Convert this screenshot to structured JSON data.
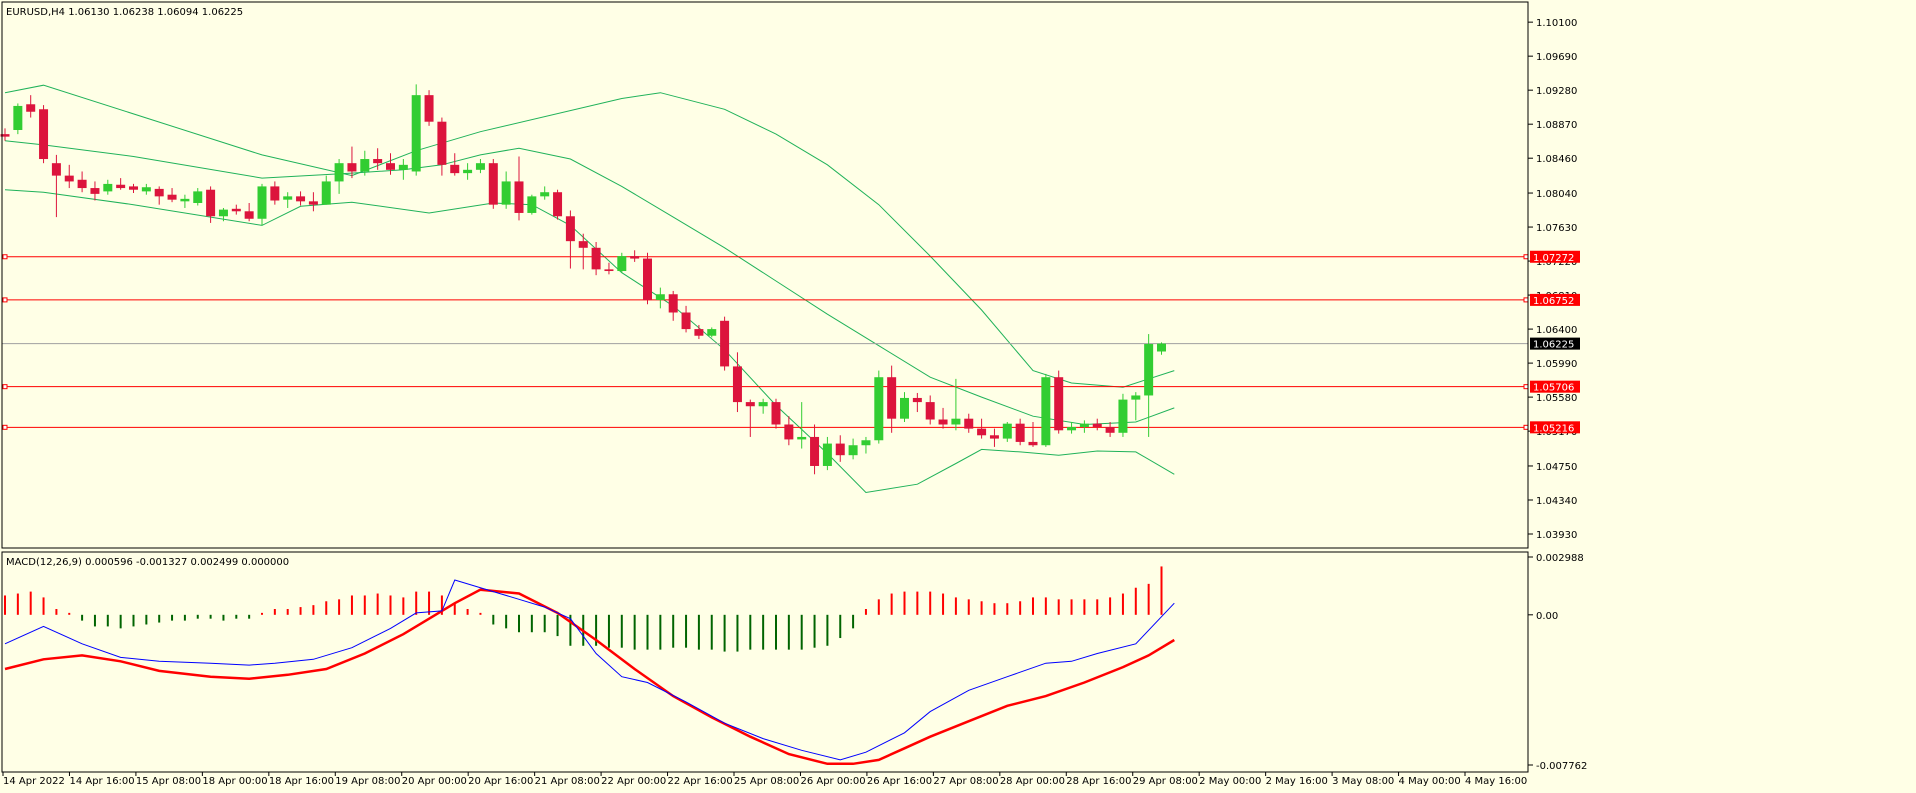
{
  "header": {
    "main_label": "EURUSD,H4  1.06130 1.06238 1.06094 1.06225",
    "macd_label": "MACD(12,26,9) 0.000596 -0.001327 0.002499 0.000000"
  },
  "colors": {
    "background": "#ffffe6",
    "bull": "#32cd32",
    "bear": "#dc143c",
    "bands": "#20b25a",
    "hline": "#ff0000",
    "macd_line": "#0000ff",
    "signal_line": "#ff0000",
    "hist_pos": "#ff0000",
    "hist_neg": "#006400"
  },
  "chart_data": [
    {
      "type": "candlestick",
      "symbol": "EURUSD",
      "timeframe": "H4",
      "ylim": [
        1.0393,
        1.1015
      ],
      "y_ticks": [
        "1.10100",
        "1.09690",
        "1.09280",
        "1.08870",
        "1.08460",
        "1.08040",
        "1.07630",
        "1.07220",
        "1.06810",
        "1.06400",
        "1.05990",
        "1.05580",
        "1.05170",
        "1.04750",
        "1.04340",
        "1.03930"
      ],
      "x_labels": [
        "14 Apr 2022",
        "14 Apr 16:00",
        "15 Apr 08:00",
        "18 Apr 00:00",
        "18 Apr 16:00",
        "19 Apr 08:00",
        "20 Apr 00:00",
        "20 Apr 16:00",
        "21 Apr 08:00",
        "22 Apr 00:00",
        "22 Apr 16:00",
        "25 Apr 08:00",
        "26 Apr 00:00",
        "26 Apr 16:00",
        "27 Apr 08:00",
        "28 Apr 00:00",
        "28 Apr 16:00",
        "29 Apr 08:00",
        "2 May 00:00",
        "2 May 16:00",
        "3 May 08:00",
        "4 May 00:00",
        "4 May 16:00"
      ],
      "price_levels": [
        {
          "label": "1.07272",
          "value": 1.07272
        },
        {
          "label": "1.06752",
          "value": 1.06752
        },
        {
          "label": "1.05706",
          "value": 1.05706
        },
        {
          "label": "1.05216",
          "value": 1.05216
        }
      ],
      "current_price": {
        "label": "1.06225",
        "value": 1.06225
      },
      "candles": [
        [
          1.0875,
          1.0882,
          1.0867,
          1.0872
        ],
        [
          1.088,
          1.0912,
          1.0875,
          1.0909
        ],
        [
          1.0911,
          1.0922,
          1.0895,
          1.0902
        ],
        [
          1.0905,
          1.091,
          1.084,
          1.0845
        ],
        [
          1.084,
          1.085,
          1.0775,
          1.0825
        ],
        [
          1.0825,
          1.0838,
          1.081,
          1.0818
        ],
        [
          1.082,
          1.083,
          1.0805,
          1.081
        ],
        [
          1.081,
          1.0818,
          1.0795,
          1.0803
        ],
        [
          1.0806,
          1.082,
          1.0802,
          1.0815
        ],
        [
          1.0814,
          1.0822,
          1.0808,
          1.081
        ],
        [
          1.0812,
          1.0815,
          1.0804,
          1.0808
        ],
        [
          1.0806,
          1.0815,
          1.0802,
          1.0811
        ],
        [
          1.0809,
          1.0812,
          1.079,
          1.08
        ],
        [
          1.0802,
          1.081,
          1.0793,
          1.0796
        ],
        [
          1.0794,
          1.0802,
          1.0786,
          1.0797
        ],
        [
          1.0792,
          1.081,
          1.0789,
          1.0806
        ],
        [
          1.0808,
          1.0812,
          1.0768,
          1.0776
        ],
        [
          1.0776,
          1.0786,
          1.077,
          1.0784
        ],
        [
          1.0785,
          1.079,
          1.0778,
          1.0782
        ],
        [
          1.0782,
          1.0792,
          1.077,
          1.0773
        ],
        [
          1.0773,
          1.0815,
          1.0765,
          1.0812
        ],
        [
          1.0812,
          1.0818,
          1.079,
          1.0795
        ],
        [
          1.0796,
          1.0805,
          1.0786,
          1.08
        ],
        [
          1.08,
          1.0806,
          1.0789,
          1.0794
        ],
        [
          1.0794,
          1.0805,
          1.0782,
          1.079
        ],
        [
          1.079,
          1.0825,
          1.079,
          1.0818
        ],
        [
          1.0818,
          1.0845,
          1.0803,
          1.084
        ],
        [
          1.084,
          1.086,
          1.0822,
          1.083
        ],
        [
          1.083,
          1.0855,
          1.0825,
          1.0845
        ],
        [
          1.0845,
          1.0858,
          1.0832,
          1.084
        ],
        [
          1.084,
          1.0852,
          1.0826,
          1.0832
        ],
        [
          1.0832,
          1.0845,
          1.082,
          1.0838
        ],
        [
          1.083,
          1.0935,
          1.0825,
          1.0922
        ],
        [
          1.0922,
          1.0928,
          1.0885,
          1.089
        ],
        [
          1.089,
          1.0895,
          1.0825,
          1.0838
        ],
        [
          1.0838,
          1.0852,
          1.0825,
          1.0828
        ],
        [
          1.0828,
          1.084,
          1.082,
          1.0832
        ],
        [
          1.0832,
          1.0845,
          1.0828,
          1.084
        ],
        [
          1.084,
          1.0845,
          1.0785,
          1.079
        ],
        [
          1.079,
          1.083,
          1.0785,
          1.0818
        ],
        [
          1.0818,
          1.0848,
          1.0771,
          1.078
        ],
        [
          1.078,
          1.0802,
          1.0778,
          1.08
        ],
        [
          1.08,
          1.0812,
          1.0796,
          1.0805
        ],
        [
          1.0805,
          1.0808,
          1.0772,
          1.0776
        ],
        [
          1.0776,
          1.0783,
          1.0713,
          1.0746
        ],
        [
          1.0746,
          1.0755,
          1.0712,
          1.0738
        ],
        [
          1.0738,
          1.0745,
          1.0705,
          1.0712
        ],
        [
          1.0712,
          1.072,
          1.0706,
          1.071
        ],
        [
          1.071,
          1.0732,
          1.0708,
          1.0728
        ],
        [
          1.0728,
          1.0735,
          1.0721,
          1.0725
        ],
        [
          1.0725,
          1.0732,
          1.067,
          1.0675
        ],
        [
          1.0675,
          1.069,
          1.0665,
          1.0682
        ],
        [
          1.0682,
          1.0686,
          1.065,
          1.066
        ],
        [
          1.066,
          1.0668,
          1.0636,
          1.064
        ],
        [
          1.064,
          1.0645,
          1.0628,
          1.0632
        ],
        [
          1.0632,
          1.0642,
          1.063,
          1.064
        ],
        [
          1.065,
          1.0655,
          1.059,
          1.0595
        ],
        [
          1.0595,
          1.0612,
          1.054,
          1.0552
        ],
        [
          1.0552,
          1.0555,
          1.051,
          1.0547
        ],
        [
          1.0547,
          1.0556,
          1.0538,
          1.0552
        ],
        [
          1.0552,
          1.0556,
          1.052,
          1.0525
        ],
        [
          1.0525,
          1.0535,
          1.05,
          1.0507
        ],
        [
          1.0507,
          1.0552,
          1.0496,
          1.051
        ],
        [
          1.051,
          1.0525,
          1.0465,
          1.0475
        ],
        [
          1.0475,
          1.051,
          1.047,
          1.0502
        ],
        [
          1.0502,
          1.0512,
          1.048,
          1.0488
        ],
        [
          1.0488,
          1.0508,
          1.0483,
          1.05
        ],
        [
          1.05,
          1.051,
          1.049,
          1.0506
        ],
        [
          1.0506,
          1.059,
          1.0502,
          1.0582
        ],
        [
          1.0582,
          1.0596,
          1.0515,
          1.0532
        ],
        [
          1.0532,
          1.0564,
          1.0528,
          1.0557
        ],
        [
          1.0557,
          1.0563,
          1.054,
          1.0552
        ],
        [
          1.0552,
          1.056,
          1.0525,
          1.0531
        ],
        [
          1.0531,
          1.0545,
          1.052,
          1.0525
        ],
        [
          1.0525,
          1.058,
          1.0518,
          1.0532
        ],
        [
          1.0532,
          1.0538,
          1.0515,
          1.052
        ],
        [
          1.052,
          1.0532,
          1.0508,
          1.0512
        ],
        [
          1.0512,
          1.052,
          1.0498,
          1.0508
        ],
        [
          1.0508,
          1.0528,
          1.0504,
          1.0526
        ],
        [
          1.0526,
          1.0532,
          1.05,
          1.0504
        ],
        [
          1.0504,
          1.0528,
          1.0498,
          1.05
        ],
        [
          1.05,
          1.0586,
          1.0498,
          1.0582
        ],
        [
          1.0582,
          1.059,
          1.0514,
          1.0518
        ],
        [
          1.0518,
          1.0528,
          1.0514,
          1.0522
        ],
        [
          1.0522,
          1.053,
          1.0515,
          1.0526
        ],
        [
          1.0526,
          1.0532,
          1.0518,
          1.0522
        ],
        [
          1.0522,
          1.0528,
          1.051,
          1.0515
        ],
        [
          1.0515,
          1.0562,
          1.051,
          1.0555
        ],
        [
          1.0555,
          1.0564,
          1.053,
          1.056
        ],
        [
          1.056,
          1.0634,
          1.051,
          1.0622
        ],
        [
          1.0613,
          1.0624,
          1.0609,
          1.06225
        ]
      ],
      "bollinger": {
        "upper": [
          [
            0,
            1.0925
          ],
          [
            3,
            1.0934
          ],
          [
            20,
            1.085
          ],
          [
            27,
            1.0825
          ],
          [
            32,
            1.0855
          ],
          [
            37,
            1.0878
          ],
          [
            48,
            1.0918
          ],
          [
            51,
            1.0925
          ],
          [
            56,
            1.0905
          ],
          [
            60,
            1.0875
          ],
          [
            64,
            1.0838
          ],
          [
            68,
            1.079
          ],
          [
            72,
            1.0728
          ],
          [
            76,
            1.0663
          ],
          [
            80,
            1.059
          ],
          [
            83,
            1.0575
          ],
          [
            87,
            1.057
          ],
          [
            91,
            1.059
          ]
        ],
        "middle": [
          [
            0,
            1.0867
          ],
          [
            3,
            1.0862
          ],
          [
            10,
            1.0848
          ],
          [
            20,
            1.0822
          ],
          [
            27,
            1.0828
          ],
          [
            31,
            1.0832
          ],
          [
            34,
            1.0838
          ],
          [
            37,
            1.085
          ],
          [
            40,
            1.0858
          ],
          [
            44,
            1.0845
          ],
          [
            48,
            1.0812
          ],
          [
            52,
            1.0775
          ],
          [
            56,
            1.0738
          ],
          [
            60,
            1.0698
          ],
          [
            64,
            1.0658
          ],
          [
            68,
            1.062
          ],
          [
            72,
            1.0582
          ],
          [
            76,
            1.0558
          ],
          [
            80,
            1.0535
          ],
          [
            84,
            1.0525
          ],
          [
            88,
            1.0528
          ],
          [
            91,
            1.0545
          ]
        ],
        "lower": [
          [
            0,
            1.0808
          ],
          [
            3,
            1.0805
          ],
          [
            10,
            1.079
          ],
          [
            20,
            1.0765
          ],
          [
            23,
            1.0788
          ],
          [
            27,
            1.0793
          ],
          [
            33,
            1.078
          ],
          [
            38,
            1.0792
          ],
          [
            41,
            1.079
          ],
          [
            44,
            1.0765
          ],
          [
            48,
            1.0708
          ],
          [
            52,
            1.0668
          ],
          [
            56,
            1.0615
          ],
          [
            60,
            1.0548
          ],
          [
            64,
            1.049
          ],
          [
            67,
            1.0443
          ],
          [
            71,
            1.0453
          ],
          [
            74,
            1.0478
          ],
          [
            76,
            1.0495
          ],
          [
            79,
            1.0492
          ],
          [
            82,
            1.0488
          ],
          [
            85,
            1.0493
          ],
          [
            88,
            1.0492
          ],
          [
            91,
            1.0465
          ]
        ]
      }
    },
    {
      "type": "macd",
      "params": "12,26,9",
      "values": {
        "macd": 0.000596,
        "signal": -0.001327,
        "histogram": 0.002499,
        "zero": 0.0
      },
      "ylim": [
        -0.007762,
        0.002988
      ],
      "y_ticks": [
        "0.002988",
        "0.00",
        "-0.007762"
      ],
      "histogram": [
        0.001,
        0.0011,
        0.0012,
        0.0009,
        0.0003,
        0.0001,
        -0.0003,
        -0.0006,
        -0.0006,
        -0.0007,
        -0.0006,
        -0.0005,
        -0.0004,
        -0.0003,
        -0.0003,
        -0.0002,
        -0.0002,
        -0.0003,
        -0.0002,
        -0.0002,
        0.0001,
        0.0003,
        0.0003,
        0.0004,
        0.0005,
        0.0007,
        0.0008,
        0.001,
        0.001,
        0.0011,
        0.001,
        0.0009,
        0.0012,
        0.0012,
        0.001,
        0.0006,
        0.0003,
        0.0001,
        -0.0005,
        -0.0007,
        -0.0009,
        -0.0009,
        -0.0009,
        -0.0011,
        -0.0016,
        -0.0016,
        -0.0016,
        -0.0017,
        -0.0017,
        -0.0018,
        -0.0018,
        -0.0018,
        -0.0017,
        -0.0017,
        -0.0018,
        -0.0018,
        -0.0019,
        -0.0019,
        -0.0018,
        -0.0018,
        -0.0018,
        -0.0018,
        -0.0018,
        -0.0017,
        -0.0016,
        -0.0012,
        -0.0007,
        0.0003,
        0.0008,
        0.0011,
        0.0012,
        0.0012,
        0.0012,
        0.0011,
        0.0009,
        0.0008,
        0.0007,
        0.0006,
        0.0006,
        0.0007,
        0.0009,
        0.0009,
        0.0008,
        0.0008,
        0.0008,
        0.0008,
        0.0009,
        0.0011,
        0.0014,
        0.0016,
        0.0025
      ],
      "macd_line": [
        [
          0,
          -0.0015
        ],
        [
          3,
          -0.0006
        ],
        [
          6,
          -0.0015
        ],
        [
          9,
          -0.0022
        ],
        [
          12,
          -0.0024
        ],
        [
          16,
          -0.0025
        ],
        [
          19,
          -0.0026
        ],
        [
          21,
          -0.0025
        ],
        [
          24,
          -0.0023
        ],
        [
          27,
          -0.0017
        ],
        [
          30,
          -0.0007
        ],
        [
          32,
          0.0001
        ],
        [
          34,
          0.0002
        ],
        [
          35,
          0.0018
        ],
        [
          38,
          0.0012
        ],
        [
          40,
          0.0008
        ],
        [
          42,
          0.0004
        ],
        [
          44,
          -0.0002
        ],
        [
          46,
          -0.002
        ],
        [
          48,
          -0.0032
        ],
        [
          50,
          -0.0035
        ],
        [
          53,
          -0.0045
        ],
        [
          56,
          -0.0056
        ],
        [
          59,
          -0.0064
        ],
        [
          62,
          -0.007
        ],
        [
          65,
          -0.0075
        ],
        [
          67,
          -0.0071
        ],
        [
          70,
          -0.0061
        ],
        [
          72,
          -0.005
        ],
        [
          75,
          -0.0039
        ],
        [
          78,
          -0.0032
        ],
        [
          81,
          -0.0025
        ],
        [
          83,
          -0.0024
        ],
        [
          85,
          -0.002
        ],
        [
          88,
          -0.0015
        ],
        [
          91,
          0.0006
        ]
      ],
      "signal_line": [
        [
          0,
          -0.0028
        ],
        [
          3,
          -0.0023
        ],
        [
          6,
          -0.0021
        ],
        [
          9,
          -0.0024
        ],
        [
          12,
          -0.0029
        ],
        [
          16,
          -0.0032
        ],
        [
          19,
          -0.0033
        ],
        [
          22,
          -0.0031
        ],
        [
          25,
          -0.0028
        ],
        [
          28,
          -0.002
        ],
        [
          31,
          -0.001
        ],
        [
          33,
          -0.0002
        ],
        [
          35,
          0.0006
        ],
        [
          37,
          0.0013
        ],
        [
          40,
          0.0011
        ],
        [
          43,
          0.0001
        ],
        [
          46,
          -0.0013
        ],
        [
          49,
          -0.0028
        ],
        [
          52,
          -0.0042
        ],
        [
          55,
          -0.0053
        ],
        [
          58,
          -0.0063
        ],
        [
          61,
          -0.0072
        ],
        [
          64,
          -0.0077
        ],
        [
          66,
          -0.0077
        ],
        [
          68,
          -0.0075
        ],
        [
          70,
          -0.0069
        ],
        [
          72,
          -0.0063
        ],
        [
          75,
          -0.0055
        ],
        [
          78,
          -0.0047
        ],
        [
          81,
          -0.0042
        ],
        [
          84,
          -0.0035
        ],
        [
          87,
          -0.0027
        ],
        [
          89,
          -0.0021
        ],
        [
          91,
          -0.0013
        ]
      ]
    }
  ]
}
